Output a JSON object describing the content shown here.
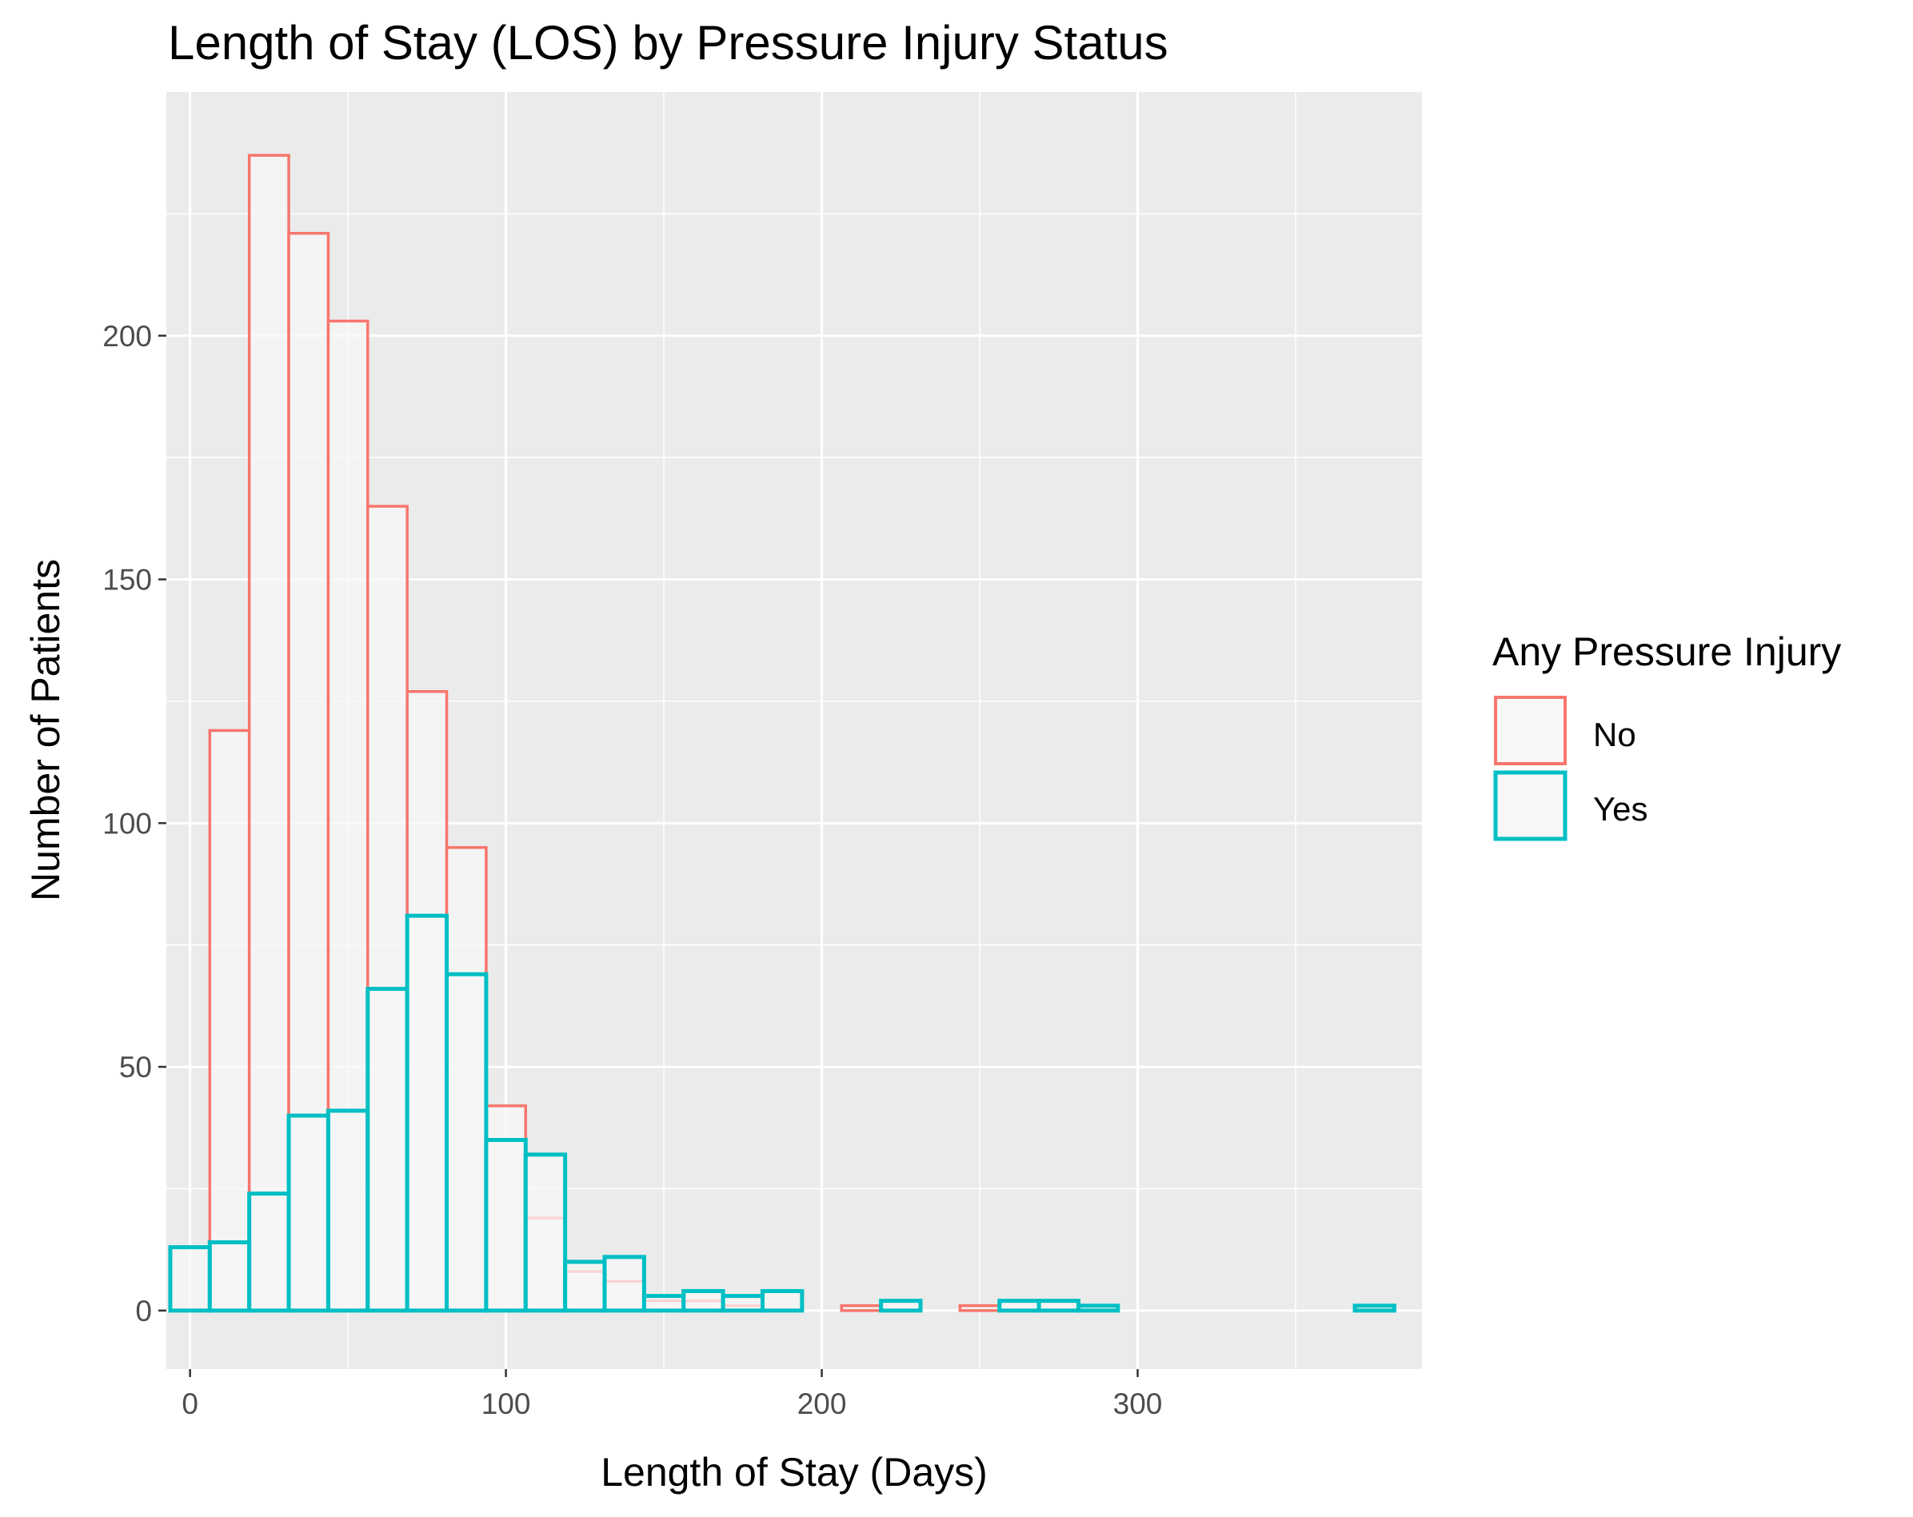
{
  "chart_data": {
    "type": "histogram",
    "title": "Length of Stay (LOS) by Pressure Injury Status",
    "xlabel": "Length of Stay (Days)",
    "ylabel": "Number of Patients",
    "xlim": [
      -7.5,
      390
    ],
    "ylim": [
      -12,
      250
    ],
    "x_ticks": [
      0,
      100,
      200,
      300
    ],
    "x_tick_labels": [
      "0",
      "100",
      "200",
      "300"
    ],
    "y_ticks": [
      0,
      50,
      100,
      150,
      200
    ],
    "y_tick_labels": [
      "0",
      "50",
      "100",
      "150",
      "200"
    ],
    "bin_width": 12.5,
    "bin_starts": [
      -6.25,
      6.25,
      18.75,
      31.25,
      43.75,
      56.25,
      68.75,
      81.25,
      93.75,
      106.25,
      118.75,
      131.25,
      143.75,
      156.25,
      168.75,
      181.25,
      193.75,
      206.25,
      218.75,
      231.25,
      243.75,
      256.25,
      268.75,
      281.25,
      293.75,
      306.25,
      318.75,
      331.25,
      343.75,
      356.25,
      368.75
    ],
    "legend": {
      "title": "Any Pressure Injury",
      "position": "right"
    },
    "series": [
      {
        "name": "No",
        "color": "#F8766D",
        "values": [
          0,
          119,
          237,
          221,
          203,
          165,
          127,
          95,
          42,
          19,
          8,
          6,
          2,
          2,
          1,
          0,
          0,
          1,
          0,
          0,
          1,
          0,
          0,
          0,
          0,
          0,
          0,
          0,
          0,
          0,
          0
        ]
      },
      {
        "name": "Yes",
        "color": "#00BFC4",
        "values": [
          13,
          14,
          24,
          40,
          41,
          66,
          81,
          69,
          35,
          32,
          10,
          11,
          3,
          4,
          3,
          4,
          0,
          0,
          2,
          0,
          0,
          2,
          2,
          1,
          0,
          0,
          0,
          0,
          0,
          0,
          1
        ]
      }
    ],
    "panel_background": "#EBEBEB",
    "bar_fill": "#F7F7F7",
    "grid": true
  }
}
